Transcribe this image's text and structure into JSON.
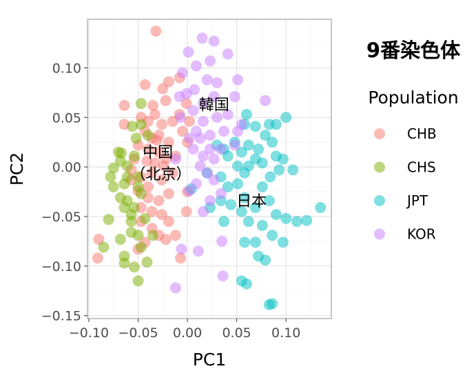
{
  "chart_data": {
    "type": "scatter",
    "title": "9番染色体",
    "xlabel": "PC1",
    "ylabel": "PC2",
    "xlim": [
      -0.1014,
      0.146
    ],
    "ylim": [
      -0.153,
      0.149
    ],
    "xticks": [
      -0.1,
      -0.05,
      0.0,
      0.05,
      0.1
    ],
    "xtick_labels": [
      "−0.10",
      "−0.05",
      "0.00",
      "0.05",
      "0.10"
    ],
    "yticks": [
      -0.15,
      -0.1,
      -0.05,
      0.0,
      0.05,
      0.1
    ],
    "ytick_labels": [
      "−0.15",
      "−0.10",
      "−0.05",
      "0.00",
      "0.05",
      "0.10"
    ],
    "grid": true,
    "legend": {
      "title": "Population",
      "placement": "right"
    },
    "point_alpha": 0.5,
    "annotations": [
      {
        "text": "韓国",
        "x": 0.027,
        "y": 0.063
      },
      {
        "text": "中国",
        "x": -0.03,
        "y": 0.015
      },
      {
        "text": "（北京）",
        "x": -0.027,
        "y": -0.007
      },
      {
        "text": "日本",
        "x": 0.065,
        "y": -0.034
      }
    ],
    "series": [
      {
        "name": "CHB",
        "color": "#F8766D",
        "points": [
          [
            -0.032,
            0.137
          ],
          [
            -0.043,
            0.083
          ],
          [
            -0.019,
            0.086
          ],
          [
            -0.025,
            0.079
          ],
          [
            -0.008,
            0.09
          ],
          [
            -0.064,
            0.062
          ],
          [
            -0.035,
            0.062
          ],
          [
            -0.022,
            0.067
          ],
          [
            -0.047,
            0.05
          ],
          [
            -0.04,
            0.046
          ],
          [
            -0.033,
            0.053
          ],
          [
            -0.026,
            0.043
          ],
          [
            -0.015,
            0.046
          ],
          [
            -0.043,
            0.036
          ],
          [
            -0.036,
            0.029
          ],
          [
            -0.029,
            0.032
          ],
          [
            -0.019,
            0.025
          ],
          [
            -0.05,
            0.022
          ],
          [
            -0.04,
            0.018
          ],
          [
            -0.029,
            0.015
          ],
          [
            -0.022,
            0.008
          ],
          [
            -0.012,
            0.011
          ],
          [
            -0.005,
            0.036
          ],
          [
            -0.001,
            0.064
          ],
          [
            0.0,
            0.025
          ],
          [
            -0.057,
            -0.003
          ],
          [
            -0.047,
            -0.01
          ],
          [
            -0.036,
            -0.006
          ],
          [
            -0.026,
            -0.013
          ],
          [
            -0.05,
            -0.024
          ],
          [
            -0.04,
            -0.031
          ],
          [
            -0.029,
            -0.034
          ],
          [
            -0.019,
            -0.027
          ],
          [
            -0.047,
            -0.041
          ],
          [
            -0.036,
            -0.045
          ],
          [
            -0.026,
            -0.048
          ],
          [
            -0.047,
            -0.055
          ],
          [
            -0.036,
            -0.062
          ],
          [
            -0.022,
            -0.073
          ],
          [
            -0.043,
            -0.076
          ],
          [
            -0.001,
            -0.045
          ],
          [
            -0.012,
            -0.069
          ],
          [
            -0.019,
            -0.055
          ],
          [
            -0.05,
            -0.083
          ],
          [
            -0.09,
            -0.073
          ],
          [
            -0.091,
            -0.092
          ],
          [
            -0.007,
            -0.092
          ],
          [
            -0.029,
            -0.069
          ],
          [
            0.0,
            -0.025
          ],
          [
            -0.04,
            -0.02
          ],
          [
            -0.033,
            0.004
          ],
          [
            -0.008,
            0.053
          ],
          [
            0.002,
            0.046
          ],
          [
            -0.031,
            0.027
          ],
          [
            -0.041,
            0.006
          ],
          [
            -0.054,
            0.008
          ],
          [
            -0.064,
            0.043
          ],
          [
            -0.024,
            0.001
          ],
          [
            -0.015,
            -0.006
          ],
          [
            -0.057,
            -0.013
          ]
        ]
      },
      {
        "name": "CHS",
        "color": "#7CAE00",
        "points": [
          [
            -0.067,
            0.014
          ],
          [
            -0.068,
            0.006
          ],
          [
            -0.075,
            -0.001
          ],
          [
            -0.078,
            -0.01
          ],
          [
            -0.064,
            -0.017
          ],
          [
            -0.068,
            -0.031
          ],
          [
            -0.061,
            -0.034
          ],
          [
            -0.05,
            -0.02
          ],
          [
            -0.047,
            -0.027
          ],
          [
            -0.054,
            -0.041
          ],
          [
            -0.064,
            -0.041
          ],
          [
            -0.057,
            -0.048
          ],
          [
            -0.08,
            -0.053
          ],
          [
            -0.068,
            -0.073
          ],
          [
            -0.057,
            -0.055
          ],
          [
            -0.05,
            -0.069
          ],
          [
            -0.047,
            -0.081
          ],
          [
            -0.064,
            -0.09
          ],
          [
            -0.054,
            -0.101
          ],
          [
            -0.041,
            -0.096
          ],
          [
            -0.05,
            -0.115
          ],
          [
            -0.064,
            -0.097
          ],
          [
            -0.085,
            -0.081
          ],
          [
            -0.056,
            0.041
          ],
          [
            -0.047,
            0.064
          ],
          [
            -0.052,
            0.029
          ],
          [
            -0.05,
            -0.01
          ],
          [
            -0.061,
            0.001
          ],
          [
            -0.054,
            0.011
          ],
          [
            -0.043,
            -0.052
          ],
          [
            -0.057,
            -0.066
          ],
          [
            -0.075,
            -0.02
          ],
          [
            -0.061,
            -0.01
          ],
          [
            -0.047,
            0.043
          ],
          [
            -0.04,
            0.032
          ],
          [
            -0.035,
            -0.069
          ],
          [
            -0.07,
            0.015
          ]
        ]
      },
      {
        "name": "JPT",
        "color": "#00BFC4",
        "points": [
          [
            0.06,
            0.053
          ],
          [
            0.058,
            0.043
          ],
          [
            0.069,
            0.041
          ],
          [
            0.083,
            0.043
          ],
          [
            0.1,
            0.05
          ],
          [
            0.09,
            0.043
          ],
          [
            0.079,
            0.032
          ],
          [
            0.086,
            0.025
          ],
          [
            0.03,
            0.022
          ],
          [
            0.037,
            0.018
          ],
          [
            0.048,
            0.025
          ],
          [
            0.062,
            0.022
          ],
          [
            0.072,
            0.018
          ],
          [
            0.055,
            0.015
          ],
          [
            0.041,
            0.011
          ],
          [
            0.069,
            0.008
          ],
          [
            0.062,
            0.001
          ],
          [
            0.051,
            0.001
          ],
          [
            0.076,
            0.004
          ],
          [
            0.09,
            0.011
          ],
          [
            0.097,
            0.008
          ],
          [
            0.107,
            -0.003
          ],
          [
            0.093,
            -0.003
          ],
          [
            0.058,
            -0.006
          ],
          [
            0.051,
            -0.017
          ],
          [
            0.041,
            -0.02
          ],
          [
            0.034,
            -0.034
          ],
          [
            0.044,
            -0.038
          ],
          [
            0.058,
            -0.031
          ],
          [
            0.076,
            -0.02
          ],
          [
            0.083,
            -0.034
          ],
          [
            0.069,
            -0.041
          ],
          [
            0.055,
            -0.045
          ],
          [
            0.062,
            -0.055
          ],
          [
            0.037,
            -0.055
          ],
          [
            0.023,
            -0.041
          ],
          [
            0.09,
            -0.048
          ],
          [
            0.1,
            -0.052
          ],
          [
            0.111,
            -0.055
          ],
          [
            0.121,
            -0.054
          ],
          [
            0.135,
            -0.041
          ],
          [
            0.076,
            -0.059
          ],
          [
            0.086,
            -0.069
          ],
          [
            0.097,
            -0.076
          ],
          [
            0.058,
            -0.076
          ],
          [
            0.069,
            -0.076
          ],
          [
            0.072,
            -0.09
          ],
          [
            0.079,
            -0.094
          ],
          [
            0.055,
            -0.115
          ],
          [
            0.06,
            -0.118
          ],
          [
            0.083,
            -0.139
          ],
          [
            0.086,
            -0.138
          ],
          [
            0.004,
            -0.022
          ],
          [
            0.02,
            -0.006
          ],
          [
            0.034,
            -0.01
          ],
          [
            0.084,
            -0.01
          ]
        ]
      },
      {
        "name": "KOR",
        "color": "#C77CFF",
        "points": [
          [
            0.015,
            0.13
          ],
          [
            0.027,
            0.127
          ],
          [
            0.001,
            0.116
          ],
          [
            0.041,
            0.114
          ],
          [
            -0.005,
            0.095
          ],
          [
            0.009,
            0.102
          ],
          [
            0.023,
            0.107
          ],
          [
            0.02,
            0.088
          ],
          [
            0.03,
            0.085
          ],
          [
            0.051,
            0.088
          ],
          [
            0.079,
            0.067
          ],
          [
            0.027,
            0.071
          ],
          [
            0.016,
            0.064
          ],
          [
            0.006,
            0.057
          ],
          [
            0.016,
            0.046
          ],
          [
            0.03,
            0.05
          ],
          [
            0.041,
            0.053
          ],
          [
            -0.001,
            0.074
          ],
          [
            -0.008,
            0.071
          ],
          [
            0.009,
            0.036
          ],
          [
            0.023,
            0.032
          ],
          [
            0.037,
            0.036
          ],
          [
            0.051,
            0.036
          ],
          [
            0.006,
            0.018
          ],
          [
            0.016,
            0.011
          ],
          [
            0.023,
            0.018
          ],
          [
            0.013,
            0.001
          ],
          [
            0.02,
            -0.006
          ],
          [
            0.009,
            -0.017
          ],
          [
            0.002,
            -0.024
          ],
          [
            0.027,
            -0.013
          ],
          [
            0.034,
            -0.027
          ],
          [
            0.023,
            -0.034
          ],
          [
            0.016,
            -0.045
          ],
          [
            0.035,
            -0.075
          ],
          [
            0.036,
            -0.11
          ],
          [
            -0.012,
            -0.122
          ],
          [
            -0.006,
            -0.083
          ],
          [
            0.011,
            -0.085
          ],
          [
            -0.012,
            0.008
          ],
          [
            0.002,
            0.029
          ],
          [
            0.034,
            0.018
          ],
          [
            0.048,
            0.022
          ],
          [
            0.027,
            0.008
          ],
          [
            0.013,
            0.029
          ],
          [
            0.007,
            0.078
          ],
          [
            0.048,
            0.071
          ],
          [
            -0.007,
            0.05
          ],
          [
            0.055,
            0.043
          ]
        ]
      }
    ]
  }
}
